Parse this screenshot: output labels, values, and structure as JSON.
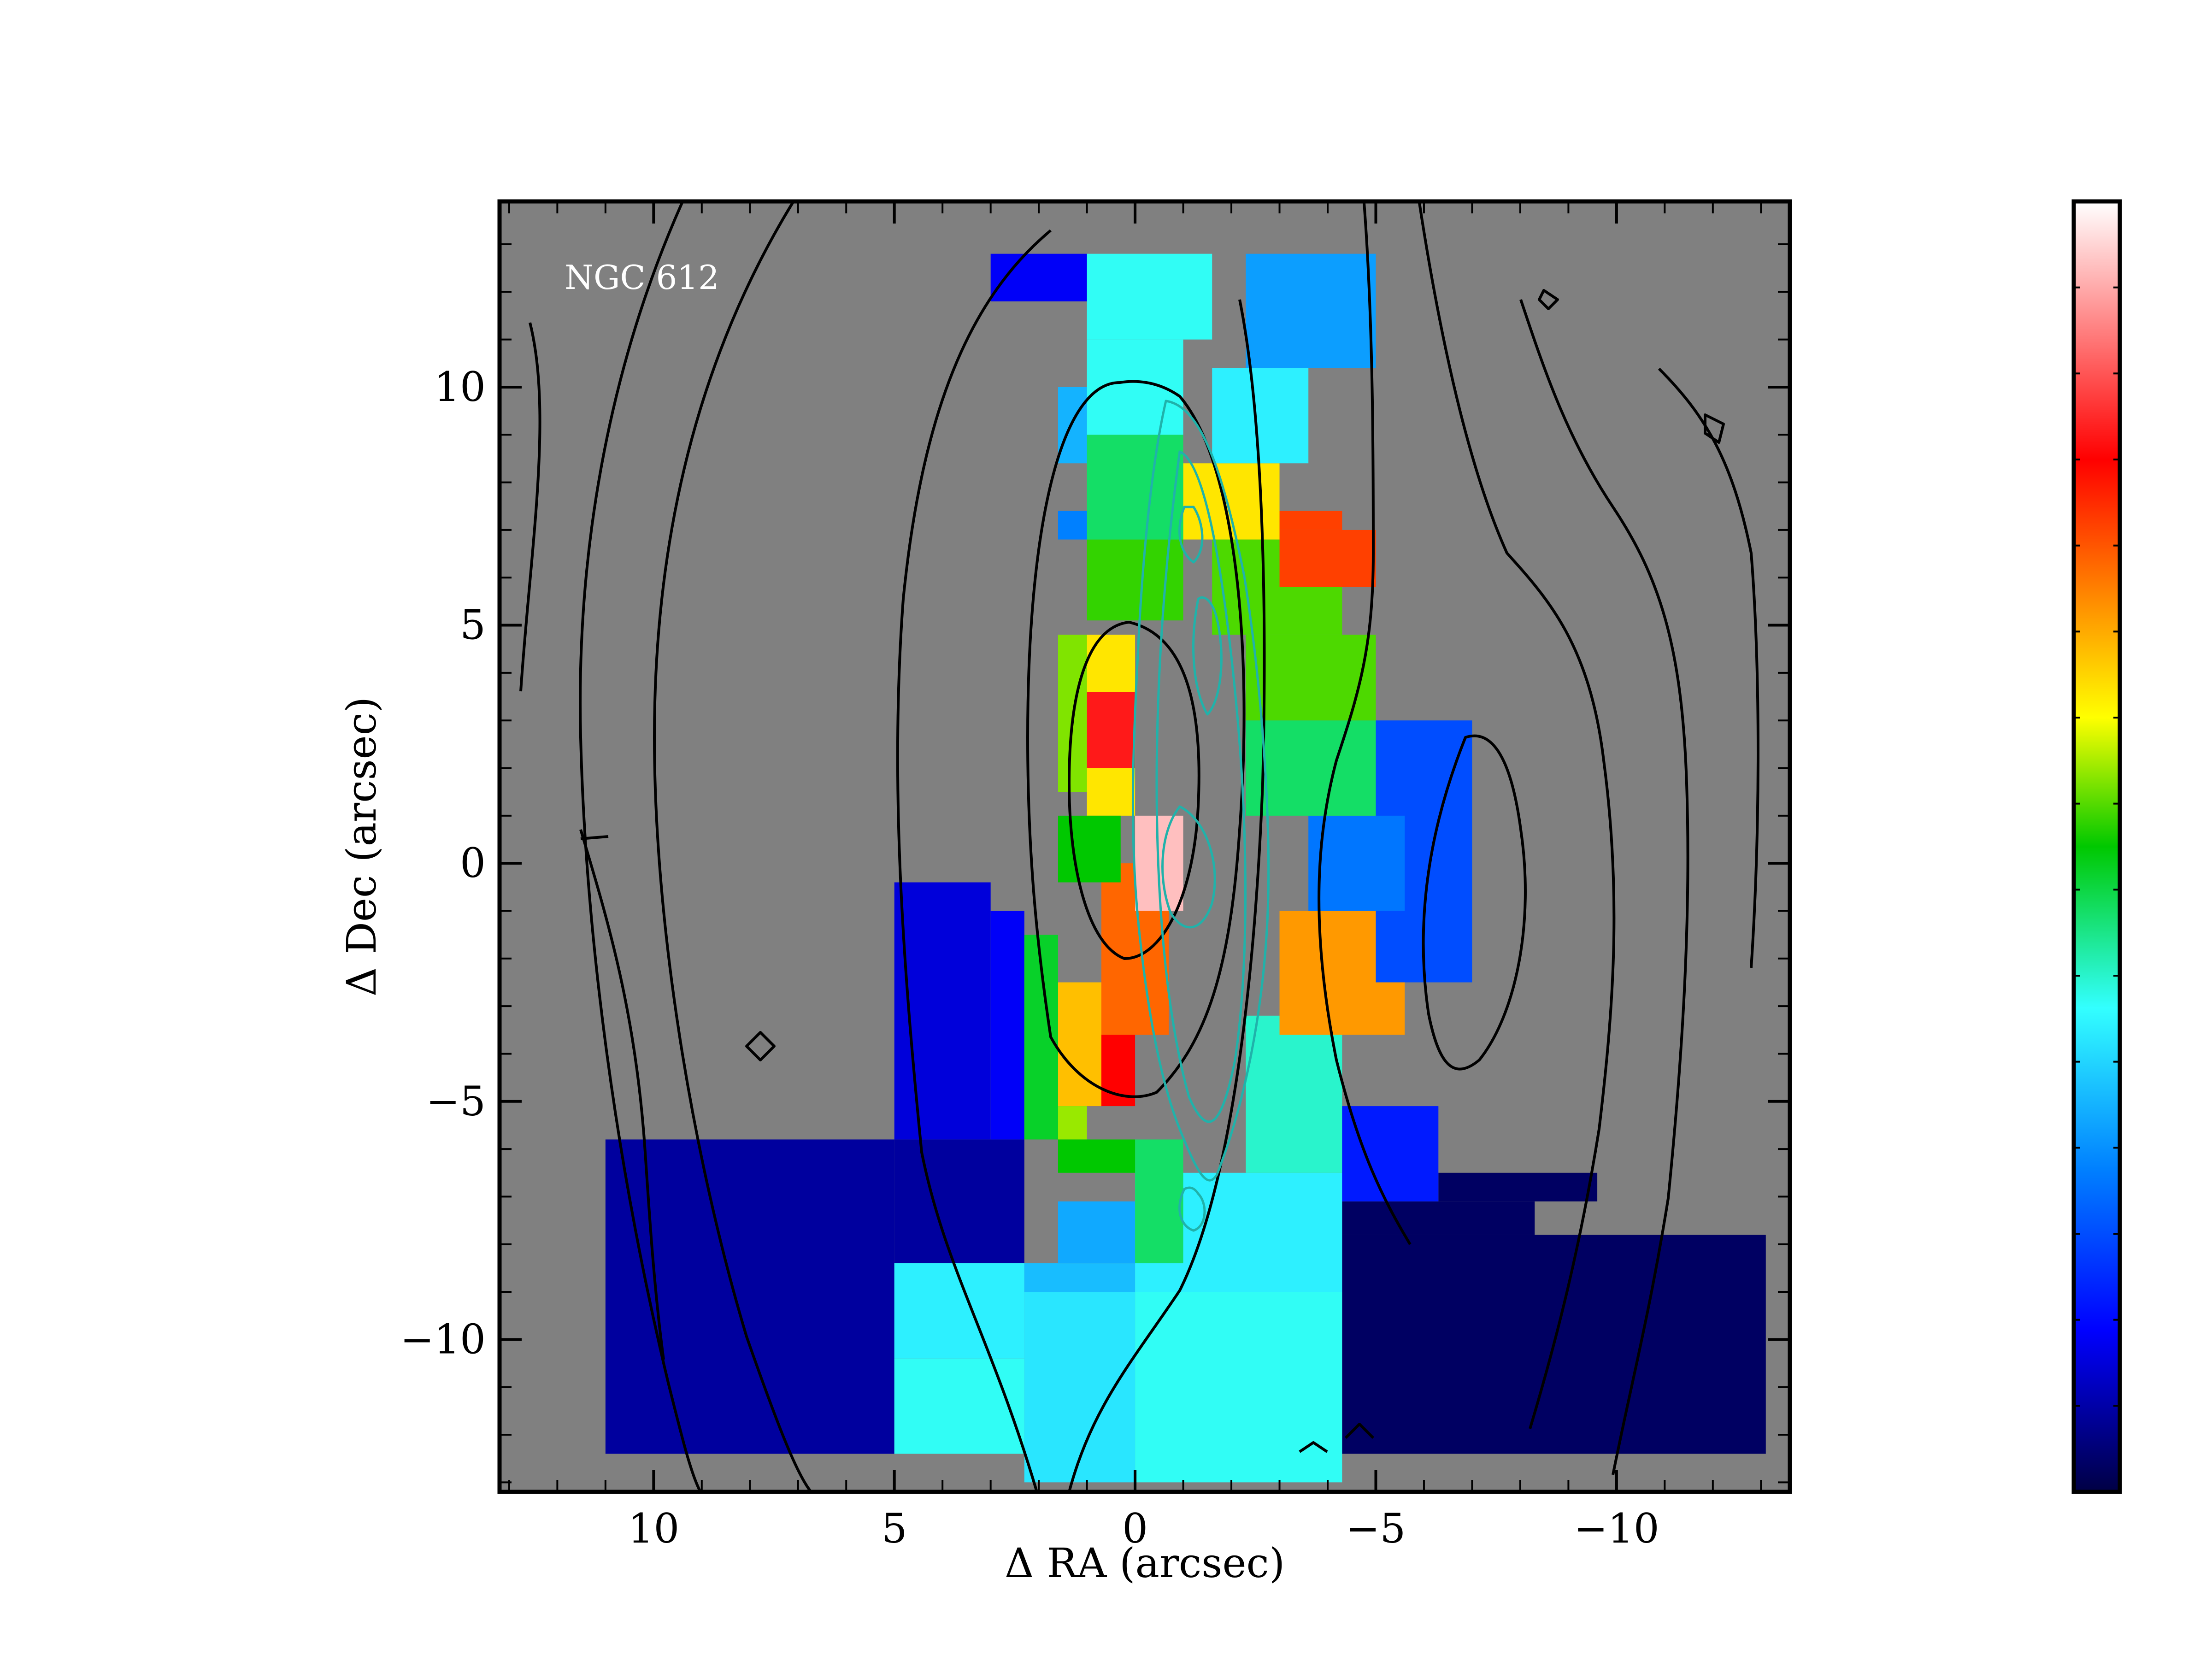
{
  "chart_data": {
    "type": "heatmap",
    "title": "",
    "annotation": "NGC 612",
    "xlabel": "Δ RA (arcsec)",
    "ylabel": "Δ Dec (arcsec)",
    "xlim": [
      13.2,
      -13.6
    ],
    "ylim": [
      -13.2,
      13.9
    ],
    "x_ticks": [
      10,
      5,
      0,
      -5,
      -10
    ],
    "x_tick_labels": [
      "10",
      "5",
      "0",
      "−5",
      "−10"
    ],
    "y_ticks": [
      10,
      5,
      0,
      -5,
      -10
    ],
    "y_tick_labels": [
      "10",
      "5",
      "0",
      "−5",
      "−10"
    ],
    "background_color": "#808080",
    "colormap": "jet",
    "colormap_stops": [
      "#000044",
      "#0000ff",
      "#0080ff",
      "#33ffff",
      "#00c800",
      "#ffff00",
      "#ff8000",
      "#ff0000",
      "#ffffff"
    ],
    "colorbar_tick_labels": [],
    "grid": false,
    "legend": "none",
    "pixel_size_arcsec": 0.67,
    "bin_levels": [
      {
        "x0": 11.0,
        "x1": 5.0,
        "y0": -12.4,
        "y1": -5.8,
        "v": 0.06
      },
      {
        "x0": 5.0,
        "x1": 2.3,
        "y0": -8.4,
        "y1": -5.8,
        "v": 0.06
      },
      {
        "x0": -4.3,
        "x1": -13.1,
        "y0": -12.4,
        "y1": -7.8,
        "v": 0.02
      },
      {
        "x0": -4.3,
        "x1": -8.3,
        "y0": -7.8,
        "y1": -7.1,
        "v": 0.02
      },
      {
        "x0": -6.3,
        "x1": -9.6,
        "y0": -7.1,
        "y1": -6.5,
        "v": 0.02
      },
      {
        "x0": 5.0,
        "x1": 2.3,
        "y0": -12.4,
        "y1": -10.4,
        "v": 0.38
      },
      {
        "x0": 5.0,
        "x1": 2.3,
        "y0": -10.4,
        "y1": -8.4,
        "v": 0.36
      },
      {
        "x0": 2.3,
        "x1": 0.0,
        "y0": -13.0,
        "y1": -9.0,
        "v": 0.35
      },
      {
        "x0": 2.3,
        "x1": 0.0,
        "y0": -9.0,
        "y1": -8.4,
        "v": 0.31
      },
      {
        "x0": 0.0,
        "x1": -4.3,
        "y0": -13.0,
        "y1": -9.0,
        "v": 0.38
      },
      {
        "x0": 0.0,
        "x1": -4.3,
        "y0": -9.0,
        "y1": -6.5,
        "v": 0.36
      },
      {
        "x0": 5.0,
        "x1": 3.0,
        "y0": -5.8,
        "y1": -0.4,
        "v": 0.1
      },
      {
        "x0": 3.0,
        "x1": 2.3,
        "y0": -5.8,
        "y1": -1.0,
        "v": 0.12
      },
      {
        "x0": 1.6,
        "x1": 0.0,
        "y0": -8.4,
        "y1": -7.1,
        "v": 0.29
      },
      {
        "x0": 0.0,
        "x1": -1.0,
        "y0": -8.4,
        "y1": -5.8,
        "v": 0.45
      },
      {
        "x0": -2.3,
        "x1": -4.3,
        "y0": -6.5,
        "y1": -3.2,
        "v": 0.4
      },
      {
        "x0": -4.3,
        "x1": -6.3,
        "y0": -7.1,
        "y1": -5.1,
        "v": 0.15
      },
      {
        "x0": -5.0,
        "x1": -7.0,
        "y0": -2.5,
        "y1": 3.0,
        "v": 0.2
      },
      {
        "x0": -3.6,
        "x1": -5.6,
        "y0": -1.0,
        "y1": 1.0,
        "v": 0.24
      },
      {
        "x0": -2.3,
        "x1": -5.0,
        "y0": 1.0,
        "y1": 3.0,
        "v": 0.45
      },
      {
        "x0": -2.3,
        "x1": -5.0,
        "y0": 3.0,
        "y1": 4.8,
        "v": 0.53
      },
      {
        "x0": -1.6,
        "x1": -4.3,
        "y0": 4.8,
        "y1": 6.8,
        "v": 0.53
      },
      {
        "x0": -3.0,
        "x1": -5.0,
        "y0": 5.8,
        "y1": 7.0,
        "v": 0.75
      },
      {
        "x0": -3.0,
        "x1": -4.3,
        "y0": 7.0,
        "y1": 7.4,
        "v": 0.75
      },
      {
        "x0": -3.0,
        "x1": -5.0,
        "y0": -3.6,
        "y1": -1.0,
        "v": 0.68
      },
      {
        "x0": -5.0,
        "x1": -5.6,
        "y0": -3.6,
        "y1": -2.5,
        "v": 0.68
      },
      {
        "x0": 0.7,
        "x1": -0.7,
        "y0": -3.6,
        "y1": 0.0,
        "v": 0.72
      },
      {
        "x0": 1.0,
        "x1": 0.0,
        "y0": -5.1,
        "y1": -3.6,
        "v": 0.8
      },
      {
        "x0": 1.6,
        "x1": 0.7,
        "y0": -5.1,
        "y1": -2.5,
        "v": 0.65
      },
      {
        "x0": 1.6,
        "x1": 1.0,
        "y0": -5.8,
        "y1": -5.1,
        "v": 0.56
      },
      {
        "x0": 1.6,
        "x1": 0.0,
        "y0": -6.5,
        "y1": -5.8,
        "v": 0.5
      },
      {
        "x0": 2.3,
        "x1": 1.6,
        "y0": -5.8,
        "y1": -1.5,
        "v": 0.48
      },
      {
        "x0": 0.0,
        "x1": -1.0,
        "y0": -1.0,
        "y1": 1.0,
        "v": 0.95
      },
      {
        "x0": 1.0,
        "x1": 0.0,
        "y0": 1.0,
        "y1": 4.8,
        "v": 0.62
      },
      {
        "x0": 1.0,
        "x1": 0.0,
        "y0": 2.0,
        "y1": 3.6,
        "v": 0.82
      },
      {
        "x0": 1.6,
        "x1": 1.0,
        "y0": 1.5,
        "y1": 4.8,
        "v": 0.55
      },
      {
        "x0": 1.0,
        "x1": 0.3,
        "y0": 7.4,
        "y1": 8.4,
        "v": 0.55
      },
      {
        "x0": -1.0,
        "x1": -3.0,
        "y0": 6.8,
        "y1": 8.4,
        "v": 0.62
      },
      {
        "x0": 1.0,
        "x1": -1.0,
        "y0": 5.1,
        "y1": 6.8,
        "v": 0.52
      },
      {
        "x0": 1.0,
        "x1": -1.0,
        "y0": 6.8,
        "y1": 9.0,
        "v": 0.45
      },
      {
        "x0": 1.0,
        "x1": -1.0,
        "y0": 9.0,
        "y1": 11.0,
        "v": 0.38
      },
      {
        "x0": 1.6,
        "x1": 1.0,
        "y0": 8.4,
        "y1": 10.0,
        "v": 0.3
      },
      {
        "x0": 1.0,
        "x1": -1.6,
        "y0": 11.0,
        "y1": 12.8,
        "v": 0.38
      },
      {
        "x0": 3.0,
        "x1": 1.0,
        "y0": 11.8,
        "y1": 12.8,
        "v": 0.12
      },
      {
        "x0": -2.3,
        "x1": -5.0,
        "y0": 10.4,
        "y1": 12.8,
        "v": 0.28
      },
      {
        "x0": -1.6,
        "x1": -3.6,
        "y0": 8.4,
        "y1": 10.4,
        "v": 0.36
      },
      {
        "x0": 1.6,
        "x1": 1.0,
        "y0": 6.8,
        "y1": 7.4,
        "v": 0.25
      },
      {
        "x0": 1.6,
        "x1": 0.3,
        "y0": -0.4,
        "y1": 1.0,
        "v": 0.5
      }
    ]
  }
}
